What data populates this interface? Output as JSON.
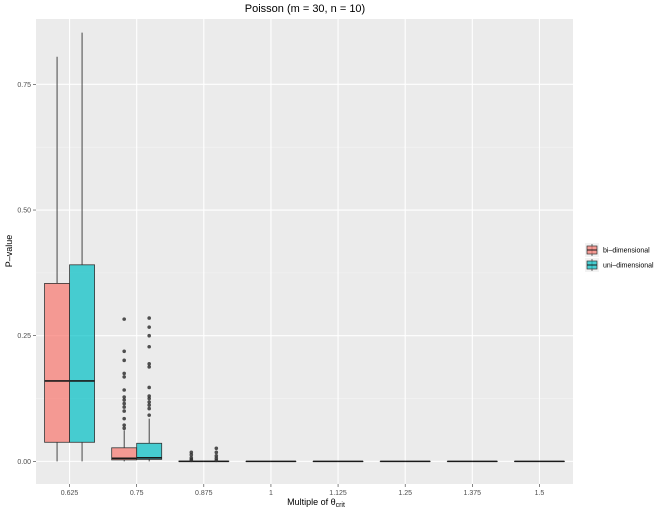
{
  "chart_data": {
    "type": "box",
    "title": "Poisson (m = 30, n = 10)",
    "xlabel": {
      "prefix": "Multiple of θ",
      "subscript": "crit"
    },
    "ylabel": "P–value",
    "categories": [
      "0.625",
      "0.75",
      "0.875",
      "1",
      "1.125",
      "1.25",
      "1.375",
      "1.5"
    ],
    "ylim": [
      -0.045,
      0.88
    ],
    "yticks": [
      {
        "value": 0.0,
        "label": "0.00"
      },
      {
        "value": 0.25,
        "label": "0.25"
      },
      {
        "value": 0.5,
        "label": "0.50"
      },
      {
        "value": 0.75,
        "label": "0.75"
      }
    ],
    "grid": true,
    "legend": {
      "placement": "right"
    },
    "series": [
      {
        "name": "bi–dimensional",
        "color": "#F8766D",
        "boxes": [
          {
            "category": "0.625",
            "min": 0.0,
            "q1": 0.038,
            "median": 0.16,
            "q3": 0.354,
            "max": 0.805,
            "outliers": []
          },
          {
            "category": "0.75",
            "min": 0.0,
            "q1": 0.003,
            "median": 0.006,
            "q3": 0.027,
            "max": 0.062,
            "outliers": [
              0.283,
              0.219,
              0.201,
              0.175,
              0.168,
              0.142,
              0.128,
              0.122,
              0.115,
              0.108,
              0.1,
              0.085,
              0.072,
              0.066
            ]
          },
          {
            "category": "0.875",
            "min": 0.0,
            "q1": 0.0,
            "median": 0.0,
            "q3": 0.0005,
            "max": 0.001,
            "outliers": [
              0.018,
              0.013,
              0.007,
              0.004,
              0.002
            ]
          },
          {
            "category": "1",
            "min": 0.0,
            "q1": 0.0,
            "median": 0.0,
            "q3": 0.0,
            "max": 0.0,
            "outliers": []
          },
          {
            "category": "1.125",
            "min": 0.0,
            "q1": 0.0,
            "median": 0.0,
            "q3": 0.0,
            "max": 0.0,
            "outliers": []
          },
          {
            "category": "1.25",
            "min": 0.0,
            "q1": 0.0,
            "median": 0.0,
            "q3": 0.0,
            "max": 0.0,
            "outliers": []
          },
          {
            "category": "1.375",
            "min": 0.0,
            "q1": 0.0,
            "median": 0.0,
            "q3": 0.0,
            "max": 0.0,
            "outliers": []
          },
          {
            "category": "1.5",
            "min": 0.0,
            "q1": 0.0,
            "median": 0.0,
            "q3": 0.0,
            "max": 0.0,
            "outliers": []
          }
        ]
      },
      {
        "name": "uni–dimensional",
        "color": "#00BFC4",
        "boxes": [
          {
            "category": "0.625",
            "min": 0.0,
            "q1": 0.038,
            "median": 0.16,
            "q3": 0.391,
            "max": 0.853,
            "outliers": []
          },
          {
            "category": "0.75",
            "min": 0.0,
            "q1": 0.004,
            "median": 0.007,
            "q3": 0.036,
            "max": 0.085,
            "outliers": [
              0.285,
              0.267,
              0.25,
              0.228,
              0.194,
              0.188,
              0.147,
              0.13,
              0.125,
              0.118,
              0.112,
              0.105,
              0.092
            ]
          },
          {
            "category": "0.875",
            "min": 0.0,
            "q1": 0.0,
            "median": 0.0,
            "q3": 0.0005,
            "max": 0.001,
            "outliers": [
              0.026,
              0.018,
              0.011,
              0.006,
              0.002
            ]
          },
          {
            "category": "1",
            "min": 0.0,
            "q1": 0.0,
            "median": 0.0,
            "q3": 0.0,
            "max": 0.0,
            "outliers": []
          },
          {
            "category": "1.125",
            "min": 0.0,
            "q1": 0.0,
            "median": 0.0,
            "q3": 0.0,
            "max": 0.0,
            "outliers": []
          },
          {
            "category": "1.25",
            "min": 0.0,
            "q1": 0.0,
            "median": 0.0,
            "q3": 0.0,
            "max": 0.0,
            "outliers": []
          },
          {
            "category": "1.375",
            "min": 0.0,
            "q1": 0.0,
            "median": 0.0,
            "q3": 0.0,
            "max": 0.0,
            "outliers": []
          },
          {
            "category": "1.5",
            "min": 0.0,
            "q1": 0.0,
            "median": 0.0,
            "q3": 0.0,
            "max": 0.0,
            "outliers": []
          }
        ]
      }
    ]
  }
}
